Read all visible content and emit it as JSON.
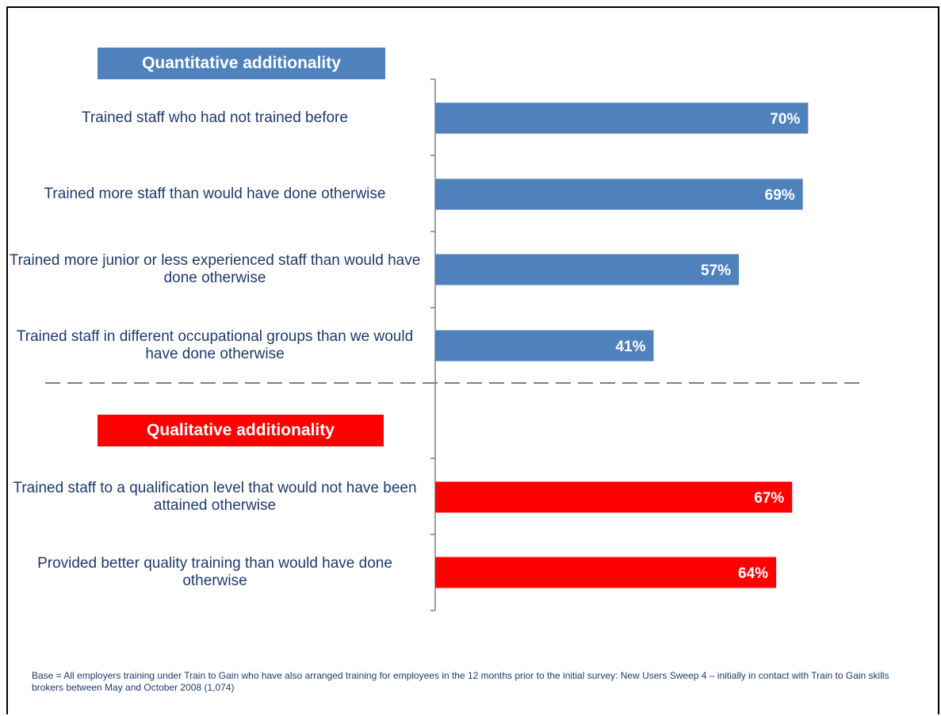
{
  "chart_data": {
    "type": "bar",
    "orientation": "horizontal",
    "colors": {
      "quantitative": "#4f81bd",
      "qualitative": "#ff0000"
    },
    "groups": [
      {
        "name": "Quantitative additionality",
        "color": "#4f81bd",
        "items": [
          {
            "label": "Trained staff who had not trained before",
            "value": 70,
            "value_label": "70%"
          },
          {
            "label": "Trained more staff than would have done otherwise",
            "value": 69,
            "value_label": "69%"
          },
          {
            "label": "Trained more junior or less experienced staff than would have done otherwise",
            "value": 57,
            "value_label": "57%"
          },
          {
            "label": "Trained staff in different occupational groups than we would have done otherwise",
            "value": 41,
            "value_label": "41%"
          }
        ]
      },
      {
        "name": "Qualitative additionality",
        "color": "#ff0000",
        "items": [
          {
            "label": "Trained staff to a qualification level that would not have been attained otherwise",
            "value": 67,
            "value_label": "67%"
          },
          {
            "label": "Provided better quality training than would have done otherwise",
            "value": 64,
            "value_label": "64%"
          }
        ]
      }
    ],
    "xlim": [
      0,
      100
    ],
    "grid": false,
    "legend": "none"
  },
  "footnote": "Base = All employers training under Train to Gain who have also arranged training for employees in the 12 months prior to the initial survey: New Users Sweep 4 – initially in contact with Train to Gain skills brokers between May and October 2008 (1,074)"
}
